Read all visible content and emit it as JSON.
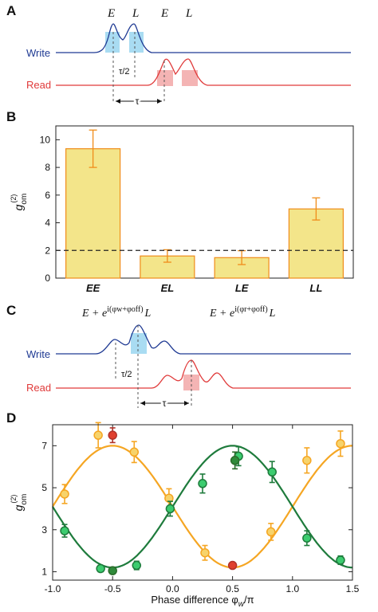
{
  "panels": {
    "a": {
      "label": "A",
      "pulse_labels": [
        "E",
        "L",
        "E",
        "L"
      ],
      "write_label": "Write",
      "read_label": "Read",
      "half_tau_label": "τ/2",
      "tau_label": "τ",
      "colors": {
        "write": "#1f3a93",
        "read": "#e03a3a",
        "write_fill": "#a9dcf2",
        "read_fill": "#f4b4b4"
      }
    },
    "b": {
      "label": "B"
    },
    "c": {
      "label": "C",
      "label_left_main": "E + e",
      "label_left_sup": "i(φw+φoff)",
      "label_left_tail": "L",
      "label_right_main": "E + e",
      "label_right_sup": "i(φr+φoff)",
      "label_right_tail": "L",
      "write_label": "Write",
      "read_label": "Read",
      "half_tau_label": "τ/2",
      "tau_label": "τ"
    },
    "d": {
      "label": "D"
    }
  },
  "chart_data": [
    {
      "type": "bar",
      "categories": [
        "EE",
        "EL",
        "LE",
        "LL"
      ],
      "values": [
        9.35,
        1.6,
        1.48,
        5.0
      ],
      "errors": [
        1.35,
        0.45,
        0.5,
        0.8
      ],
      "ylabel_main": "g",
      "ylabel_sub": "om",
      "ylabel_sup": "(2)",
      "ylim": [
        0,
        11
      ],
      "yticks": [
        0,
        2,
        4,
        6,
        8,
        10
      ],
      "threshold": 2,
      "colors": {
        "bar": "#f3e58a",
        "bar_edge": "#f08c1a",
        "error": "#f08c1a",
        "threshold": "#222222"
      }
    },
    {
      "type": "scatter",
      "xlabel_main": "Phase difference φ",
      "xlabel_sub": "w",
      "xlabel_tail": "/π",
      "ylabel_main": "g",
      "ylabel_sub": "om",
      "ylabel_sup": "(2)",
      "xlim": [
        -1.0,
        1.5
      ],
      "ylim": [
        0.6,
        8.0
      ],
      "xticks": [
        -1.0,
        -0.5,
        0.0,
        0.5,
        1.0,
        1.5
      ],
      "yticks": [
        1,
        3,
        5,
        7
      ],
      "series": [
        {
          "color": "#f5a623",
          "marker_fill": "#f7d36b",
          "x": [
            -0.9,
            -0.62,
            -0.32,
            -0.03,
            0.27,
            0.82,
            1.12,
            1.4
          ],
          "y": [
            4.7,
            7.5,
            6.7,
            4.5,
            1.9,
            2.9,
            6.3,
            7.1
          ],
          "err": [
            0.45,
            0.6,
            0.5,
            0.45,
            0.35,
            0.4,
            0.6,
            0.6
          ],
          "fit": {
            "center": 4.1,
            "amplitude": 2.9,
            "peak_phase": -0.5
          }
        },
        {
          "color": "#1e7b3c",
          "marker_fill": "#3ccc6f",
          "x": [
            -0.9,
            -0.6,
            -0.3,
            -0.02,
            0.25,
            0.55,
            0.83,
            1.12,
            1.4
          ],
          "y": [
            2.95,
            1.15,
            1.3,
            4.0,
            5.2,
            6.5,
            5.75,
            2.6,
            1.55
          ],
          "err": [
            0.3,
            0.15,
            0.2,
            0.35,
            0.45,
            0.45,
            0.5,
            0.35,
            0.2
          ],
          "fit": {
            "center": 4.1,
            "amplitude": 2.9,
            "peak_phase": 0.5
          }
        },
        {
          "color": "#2a6b2a",
          "marker_fill": "#2f8a3a",
          "x": [
            -0.5,
            0.52
          ],
          "y": [
            1.05,
            6.3
          ],
          "err": [
            0.1,
            0.4
          ]
        },
        {
          "color": "#b0322a",
          "marker_fill": "#e0402f",
          "x": [
            -0.5,
            0.5
          ],
          "y": [
            7.5,
            1.3
          ],
          "err": [
            0.35,
            0.1
          ]
        }
      ]
    }
  ]
}
